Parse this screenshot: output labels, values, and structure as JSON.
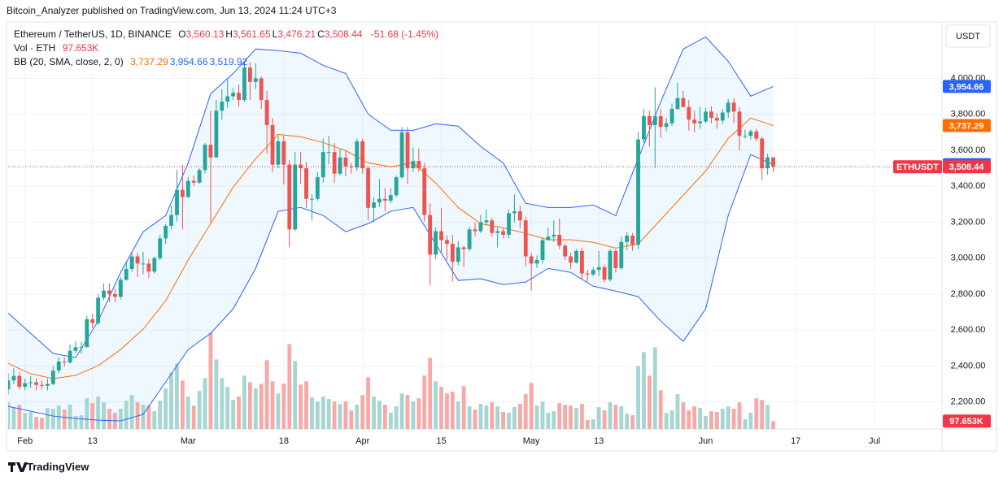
{
  "chart_data": {
    "type": "candlestick",
    "published": "Bitcoin_Analyzer published on TradingView.com, Jun 13, 2024 11:24 UTC+3",
    "currency": "USDT",
    "brand": "TradingView",
    "legend": {
      "title": "Ethereum / TetherUS, 1D, BINANCE",
      "ohlc": [
        {
          "key": "O",
          "label": "3,560.13"
        },
        {
          "key": "H",
          "label": "3,561.65"
        },
        {
          "key": "L",
          "label": "3,476.21"
        },
        {
          "key": "C",
          "label": "3,508.44"
        }
      ],
      "change": "-51.68 (-1.45%)"
    },
    "symbol": "ETHUSDT",
    "last_label": "3,508.44",
    "colors": {
      "up": "#26a69a",
      "down": "#ef5350",
      "volume_up": "#a5d6d2",
      "volume_down": "#f7a9a7",
      "last_price": "#f23645"
    },
    "grid": true,
    "xlim": [
      "2024-01-29",
      "2024-07-13"
    ],
    "xticks": [
      {
        "value": "2024-02-01",
        "label": "Feb"
      },
      {
        "value": "2024-02-13",
        "label": "13"
      },
      {
        "value": "2024-03-01",
        "label": "Mar"
      },
      {
        "value": "2024-03-18",
        "label": "18"
      },
      {
        "value": "2024-04-01",
        "label": "Apr"
      },
      {
        "value": "2024-04-15",
        "label": "15"
      },
      {
        "value": "2024-05-01",
        "label": "May"
      },
      {
        "value": "2024-05-13",
        "label": "13"
      },
      {
        "value": "2024-06-01",
        "label": "Jun"
      },
      {
        "value": "2024-06-17",
        "label": "17"
      },
      {
        "value": "2024-07-01",
        "label": "Jul"
      }
    ],
    "ylim": [
      2050,
      4300
    ],
    "yticks": [
      {
        "value": 2200,
        "label": "2,200.00"
      },
      {
        "value": 2400,
        "label": "2,400.00"
      },
      {
        "value": 2600,
        "label": "2,600.00"
      },
      {
        "value": 2800,
        "label": "2,800.00"
      },
      {
        "value": 3000,
        "label": "3,000.00"
      },
      {
        "value": 3200,
        "label": "3,200.00"
      },
      {
        "value": 3400,
        "label": "3,400.00"
      },
      {
        "value": 3600,
        "label": "3,600.00"
      },
      {
        "value": 3800,
        "label": "3,800.00"
      },
      {
        "value": 4000,
        "label": "4,000.00"
      }
    ],
    "x": [
      "2024-01-29",
      "2024-01-30",
      "2024-01-31",
      "2024-02-01",
      "2024-02-02",
      "2024-02-03",
      "2024-02-04",
      "2024-02-05",
      "2024-02-06",
      "2024-02-07",
      "2024-02-08",
      "2024-02-09",
      "2024-02-10",
      "2024-02-11",
      "2024-02-12",
      "2024-02-13",
      "2024-02-14",
      "2024-02-15",
      "2024-02-16",
      "2024-02-17",
      "2024-02-18",
      "2024-02-19",
      "2024-02-20",
      "2024-02-21",
      "2024-02-22",
      "2024-02-23",
      "2024-02-24",
      "2024-02-25",
      "2024-02-26",
      "2024-02-27",
      "2024-02-28",
      "2024-02-29",
      "2024-03-01",
      "2024-03-02",
      "2024-03-03",
      "2024-03-04",
      "2024-03-05",
      "2024-03-06",
      "2024-03-07",
      "2024-03-08",
      "2024-03-09",
      "2024-03-10",
      "2024-03-11",
      "2024-03-12",
      "2024-03-13",
      "2024-03-14",
      "2024-03-15",
      "2024-03-16",
      "2024-03-17",
      "2024-03-18",
      "2024-03-19",
      "2024-03-20",
      "2024-03-21",
      "2024-03-22",
      "2024-03-23",
      "2024-03-24",
      "2024-03-25",
      "2024-03-26",
      "2024-03-27",
      "2024-03-28",
      "2024-03-29",
      "2024-03-30",
      "2024-03-31",
      "2024-04-01",
      "2024-04-02",
      "2024-04-03",
      "2024-04-04",
      "2024-04-05",
      "2024-04-06",
      "2024-04-07",
      "2024-04-08",
      "2024-04-09",
      "2024-04-10",
      "2024-04-11",
      "2024-04-12",
      "2024-04-13",
      "2024-04-14",
      "2024-04-15",
      "2024-04-16",
      "2024-04-17",
      "2024-04-18",
      "2024-04-19",
      "2024-04-20",
      "2024-04-21",
      "2024-04-22",
      "2024-04-23",
      "2024-04-24",
      "2024-04-25",
      "2024-04-26",
      "2024-04-27",
      "2024-04-28",
      "2024-04-29",
      "2024-04-30",
      "2024-05-01",
      "2024-05-02",
      "2024-05-03",
      "2024-05-04",
      "2024-05-05",
      "2024-05-06",
      "2024-05-07",
      "2024-05-08",
      "2024-05-09",
      "2024-05-10",
      "2024-05-11",
      "2024-05-12",
      "2024-05-13",
      "2024-05-14",
      "2024-05-15",
      "2024-05-16",
      "2024-05-17",
      "2024-05-18",
      "2024-05-19",
      "2024-05-20",
      "2024-05-21",
      "2024-05-22",
      "2024-05-23",
      "2024-05-24",
      "2024-05-25",
      "2024-05-26",
      "2024-05-27",
      "2024-05-28",
      "2024-05-29",
      "2024-05-30",
      "2024-05-31",
      "2024-06-01",
      "2024-06-02",
      "2024-06-03",
      "2024-06-04",
      "2024-06-05",
      "2024-06-06",
      "2024-06-07",
      "2024-06-08",
      "2024-06-09",
      "2024-06-10",
      "2024-06-11",
      "2024-06-12",
      "2024-06-13"
    ],
    "open": [
      2270,
      2320,
      2345,
      2285,
      2305,
      2310,
      2295,
      2290,
      2300,
      2375,
      2425,
      2420,
      2485,
      2505,
      2505,
      2660,
      2640,
      2780,
      2820,
      2800,
      2785,
      2880,
      2940,
      3010,
      2970,
      2970,
      2925,
      3000,
      3110,
      3180,
      3240,
      3380,
      3340,
      3430,
      3420,
      3490,
      3630,
      3560,
      3820,
      3870,
      3900,
      3920,
      3880,
      4060,
      3980,
      4000,
      3880,
      3740,
      3520,
      3650,
      3520,
      3160,
      3520,
      3500,
      3330,
      3330,
      3450,
      3590,
      3590,
      3470,
      3560,
      3510,
      3505,
      3650,
      3500,
      3280,
      3310,
      3330,
      3320,
      3350,
      3450,
      3700,
      3500,
      3540,
      3500,
      3240,
      3020,
      3150,
      3100,
      3080,
      2980,
      3060,
      3050,
      3160,
      3150,
      3200,
      3210,
      3140,
      3150,
      3130,
      3250,
      3260,
      3210,
      3010,
      2970,
      2990,
      3100,
      3120,
      3130,
      3070,
      3010,
      2975,
      3040,
      2915,
      2910,
      2935,
      2950,
      2880,
      3040,
      2945,
      3090,
      3125,
      3075,
      3660,
      3790,
      3740,
      3790,
      3730,
      3750,
      3830,
      3890,
      3840,
      3770,
      3750,
      3760,
      3815,
      3780,
      3765,
      3810,
      3865,
      3815,
      3680,
      3680,
      3705,
      3665,
      3500,
      3560.13
    ],
    "high": [
      2360,
      2390,
      2365,
      2330,
      2345,
      2330,
      2320,
      2330,
      2400,
      2450,
      2450,
      2520,
      2540,
      2535,
      2680,
      2690,
      2800,
      2860,
      2860,
      2830,
      2895,
      2985,
      3030,
      3030,
      3035,
      2995,
      3010,
      3130,
      3190,
      3290,
      3490,
      3520,
      3450,
      3460,
      3500,
      3640,
      3820,
      3880,
      3940,
      3995,
      3945,
      3965,
      4090,
      4090,
      4085,
      4010,
      3930,
      3780,
      3680,
      3680,
      3545,
      3590,
      3590,
      3535,
      3355,
      3480,
      3665,
      3680,
      3640,
      3610,
      3600,
      3530,
      3665,
      3665,
      3510,
      3340,
      3440,
      3390,
      3390,
      3460,
      3730,
      3730,
      3615,
      3610,
      3530,
      3305,
      3170,
      3280,
      3125,
      3130,
      3095,
      3070,
      3175,
      3200,
      3240,
      3270,
      3225,
      3170,
      3165,
      3270,
      3355,
      3290,
      3230,
      3030,
      3015,
      3115,
      3170,
      3210,
      3220,
      3080,
      3030,
      3050,
      3060,
      2935,
      2950,
      3040,
      2965,
      3050,
      3050,
      3120,
      3145,
      3140,
      3700,
      3830,
      3820,
      3950,
      3830,
      3780,
      3860,
      3975,
      3930,
      3880,
      3820,
      3840,
      3835,
      3845,
      3805,
      3830,
      3885,
      3890,
      3840,
      3715,
      3715,
      3720,
      3675,
      3580,
      3561.65
    ],
    "low": [
      2240,
      2300,
      2270,
      2265,
      2280,
      2265,
      2270,
      2265,
      2295,
      2360,
      2395,
      2415,
      2470,
      2470,
      2505,
      2610,
      2630,
      2765,
      2755,
      2755,
      2770,
      2875,
      2925,
      2895,
      2910,
      2890,
      2915,
      2990,
      3080,
      3160,
      3205,
      3160,
      3335,
      3400,
      3415,
      3470,
      3200,
      3560,
      3770,
      3835,
      3880,
      3840,
      3870,
      3880,
      3940,
      3830,
      3580,
      3480,
      3500,
      3410,
      3060,
      3150,
      3415,
      3280,
      3210,
      3320,
      3420,
      3520,
      3420,
      3460,
      3455,
      3470,
      3485,
      3470,
      3210,
      3200,
      3285,
      3260,
      3305,
      3340,
      3440,
      3415,
      3480,
      3480,
      3205,
      2850,
      2995,
      3035,
      2990,
      2870,
      2960,
      2950,
      3040,
      3120,
      3140,
      3180,
      3120,
      3060,
      3110,
      3110,
      3200,
      3165,
      2955,
      2820,
      2945,
      2970,
      3100,
      3090,
      3050,
      2990,
      2940,
      2970,
      2880,
      2870,
      2900,
      2900,
      2865,
      2870,
      2920,
      2935,
      3045,
      3040,
      3050,
      3640,
      3620,
      3500,
      3670,
      3705,
      3735,
      3825,
      3840,
      3710,
      3700,
      3720,
      3750,
      3750,
      3720,
      3745,
      3780,
      3750,
      3600,
      3665,
      3660,
      3650,
      3435,
      3465,
      3476.21
    ],
    "close": [
      2320,
      2345,
      2285,
      2305,
      2310,
      2295,
      2290,
      2300,
      2375,
      2425,
      2420,
      2485,
      2505,
      2505,
      2660,
      2640,
      2780,
      2820,
      2800,
      2785,
      2880,
      2940,
      3010,
      2970,
      2970,
      2925,
      3000,
      3110,
      3180,
      3240,
      3380,
      3340,
      3430,
      3420,
      3490,
      3630,
      3560,
      3820,
      3870,
      3900,
      3920,
      3880,
      4060,
      3980,
      4000,
      3880,
      3740,
      3520,
      3650,
      3520,
      3160,
      3520,
      3500,
      3330,
      3330,
      3450,
      3590,
      3590,
      3470,
      3560,
      3510,
      3505,
      3650,
      3500,
      3280,
      3310,
      3330,
      3320,
      3350,
      3450,
      3700,
      3500,
      3540,
      3500,
      3240,
      3020,
      3150,
      3100,
      3080,
      2980,
      3060,
      3050,
      3160,
      3150,
      3200,
      3210,
      3140,
      3150,
      3130,
      3250,
      3260,
      3210,
      3010,
      2970,
      2990,
      3100,
      3120,
      3130,
      3070,
      3010,
      2975,
      3040,
      2915,
      2910,
      2935,
      2950,
      2880,
      3040,
      2945,
      3090,
      3125,
      3075,
      3660,
      3790,
      3740,
      3790,
      3730,
      3750,
      3830,
      3890,
      3840,
      3770,
      3750,
      3760,
      3815,
      3780,
      3765,
      3810,
      3865,
      3815,
      3680,
      3680,
      3705,
      3665,
      3500,
      3560.13,
      3508.44
    ],
    "volume": {
      "label": "Vol · ETH",
      "ylim": [
        0,
        5000
      ],
      "last_label": "97.653K",
      "values": [
        330,
        270,
        300,
        200,
        210,
        150,
        140,
        260,
        250,
        290,
        240,
        300,
        160,
        170,
        380,
        320,
        400,
        330,
        250,
        200,
        250,
        350,
        420,
        330,
        300,
        290,
        220,
        350,
        500,
        700,
        810,
        600,
        400,
        290,
        470,
        630,
        1190,
        860,
        630,
        520,
        360,
        400,
        660,
        580,
        500,
        560,
        850,
        590,
        440,
        560,
        1050,
        840,
        550,
        590,
        390,
        340,
        400,
        370,
        340,
        310,
        340,
        230,
        300,
        420,
        640,
        400,
        350,
        300,
        200,
        280,
        440,
        420,
        340,
        380,
        660,
        880,
        590,
        520,
        440,
        460,
        340,
        530,
        280,
        240,
        310,
        290,
        330,
        280,
        210,
        200,
        270,
        310,
        430,
        570,
        290,
        340,
        200,
        220,
        320,
        300,
        290,
        260,
        310,
        110,
        120,
        270,
        230,
        330,
        300,
        280,
        190,
        170,
        780,
        950,
        660,
        1010,
        480,
        200,
        230,
        430,
        330,
        230,
        280,
        260,
        160,
        220,
        210,
        250,
        280,
        250,
        330,
        120,
        200,
        380,
        360,
        300,
        97.653
      ]
    },
    "bb": {
      "label": "BB (20, SMA, close, 2, 0)",
      "fill": "rgba(33,150,243,0.07)",
      "x": [
        "2024-01-29",
        "2024-02-02",
        "2024-02-06",
        "2024-02-10",
        "2024-02-14",
        "2024-02-18",
        "2024-02-22",
        "2024-02-26",
        "2024-03-01",
        "2024-03-05",
        "2024-03-09",
        "2024-03-13",
        "2024-03-17",
        "2024-03-21",
        "2024-03-25",
        "2024-03-29",
        "2024-04-02",
        "2024-04-06",
        "2024-04-10",
        "2024-04-14",
        "2024-04-18",
        "2024-04-22",
        "2024-04-26",
        "2024-04-30",
        "2024-05-04",
        "2024-05-08",
        "2024-05-12",
        "2024-05-16",
        "2024-05-20",
        "2024-05-24",
        "2024-05-28",
        "2024-06-01",
        "2024-06-05",
        "2024-06-09",
        "2024-06-13"
      ],
      "series": [
        {
          "color": "#ff6d00",
          "last_label": "3,737.29",
          "values": [
            2415,
            2357,
            2330,
            2348,
            2402,
            2492,
            2605,
            2763,
            2989,
            3192,
            3395,
            3553,
            3688,
            3675,
            3643,
            3598,
            3530,
            3508,
            3530,
            3418,
            3282,
            3192,
            3169,
            3138,
            3102,
            3102,
            3088,
            3056,
            3079,
            3214,
            3350,
            3485,
            3666,
            3779,
            3737.29
          ]
        },
        {
          "color": "#2962ff",
          "last_label": "3,954.66",
          "values": [
            2695,
            2582,
            2470,
            2447,
            2650,
            2921,
            3147,
            3237,
            3530,
            3914,
            4027,
            4163,
            4154,
            4140,
            4072,
            4027,
            3801,
            3711,
            3711,
            3747,
            3734,
            3621,
            3530,
            3305,
            3282,
            3282,
            3296,
            3237,
            3553,
            3869,
            4163,
            4230,
            4095,
            3901,
            3954.66
          ]
        },
        {
          "color": "#2962ff",
          "last_label": "3,519.92",
          "values": [
            2176,
            2149,
            2122,
            2108,
            2099,
            2095,
            2131,
            2311,
            2492,
            2582,
            2718,
            2943,
            3260,
            3282,
            3237,
            3147,
            3192,
            3260,
            3282,
            3079,
            2876,
            2885,
            2853,
            2867,
            2943,
            2921,
            2844,
            2817,
            2786,
            2650,
            2537,
            2718,
            3237,
            3576,
            3519.92
          ]
        }
      ]
    }
  }
}
